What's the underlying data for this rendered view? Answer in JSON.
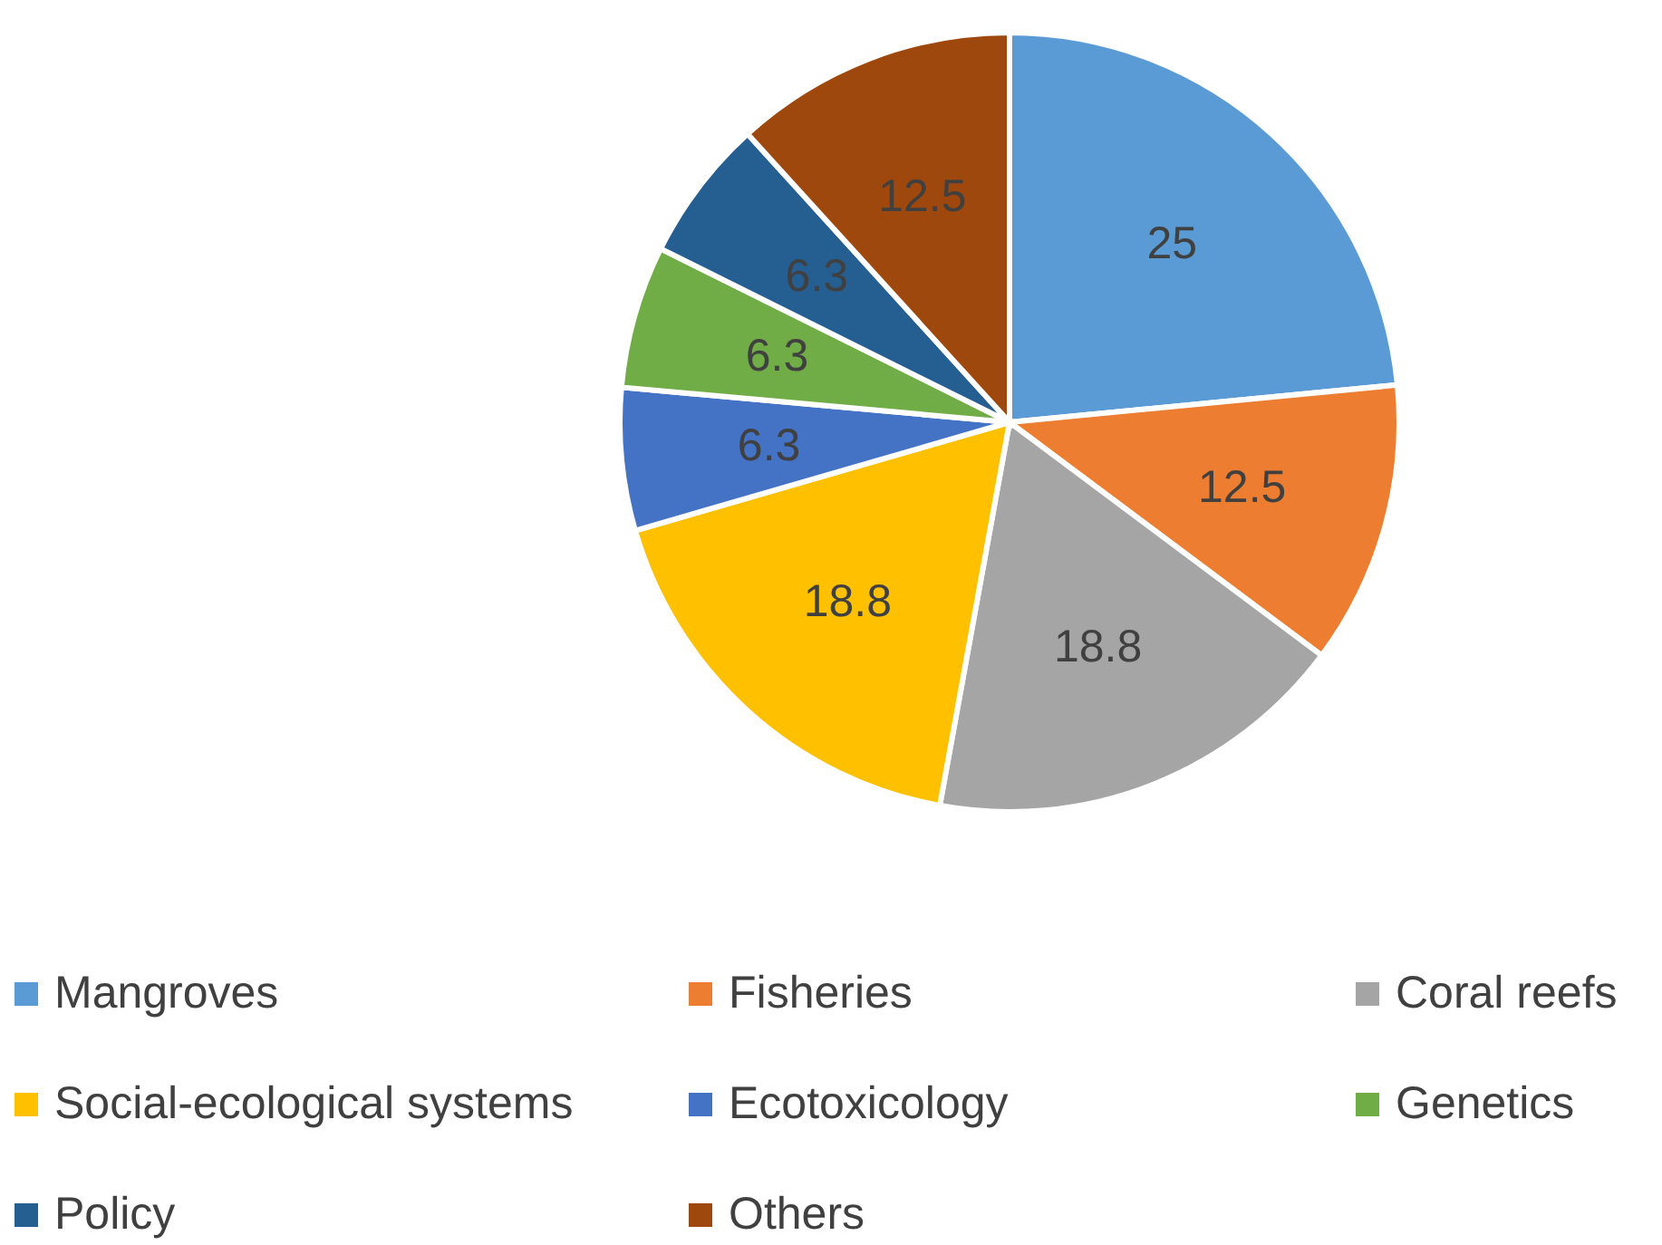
{
  "chart_data": {
    "type": "pie",
    "categories": [
      "Mangroves",
      "Fisheries",
      "Coral reefs",
      "Social-ecological systems",
      "Ecotoxicology",
      "Genetics",
      "Policy",
      "Others"
    ],
    "values": [
      25,
      12.5,
      18.8,
      18.8,
      6.3,
      6.3,
      6.3,
      12.5
    ],
    "colors": [
      "#5b9bd5",
      "#ed7d31",
      "#a5a5a5",
      "#ffc000",
      "#4472c4",
      "#70ad47",
      "#255e91",
      "#9e480e"
    ],
    "data_labels": true,
    "legend": "bottom"
  }
}
